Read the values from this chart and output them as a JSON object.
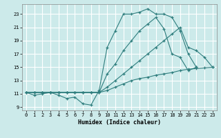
{
  "xlabel": "Humidex (Indice chaleur)",
  "xlim": [
    -0.5,
    23.5
  ],
  "ylim": [
    8.5,
    24.5
  ],
  "yticks": [
    9,
    11,
    13,
    15,
    17,
    19,
    21,
    23
  ],
  "xticks": [
    0,
    1,
    2,
    3,
    4,
    5,
    6,
    7,
    8,
    9,
    10,
    11,
    12,
    13,
    14,
    15,
    16,
    17,
    18,
    19,
    20,
    21,
    22,
    23
  ],
  "bg_color": "#cceaea",
  "line_color": "#2e7d7d",
  "grid_color": "#b0d8d8",
  "lines": [
    [
      11.2,
      10.8,
      11.0,
      11.2,
      10.8,
      10.3,
      10.5,
      9.5,
      9.3,
      11.5,
      18.0,
      20.5,
      23.0,
      23.0,
      23.3,
      23.8,
      23.0,
      23.0,
      22.5,
      20.5,
      17.0,
      15.0,
      null,
      null
    ],
    [
      11.2,
      11.2,
      11.2,
      11.2,
      11.2,
      11.2,
      11.2,
      11.2,
      11.2,
      11.2,
      14.0,
      15.5,
      17.5,
      19.0,
      20.5,
      21.5,
      22.5,
      20.8,
      17.0,
      16.5,
      14.5,
      15.0,
      null,
      null
    ],
    [
      11.2,
      11.2,
      11.2,
      11.2,
      11.2,
      11.2,
      11.2,
      11.2,
      11.2,
      11.2,
      12.0,
      13.0,
      14.0,
      15.0,
      16.0,
      17.0,
      18.0,
      19.0,
      20.0,
      21.0,
      18.0,
      17.5,
      16.5,
      15.0
    ],
    [
      11.2,
      11.2,
      11.2,
      11.2,
      11.2,
      11.2,
      11.2,
      11.2,
      11.2,
      11.2,
      11.5,
      12.0,
      12.5,
      13.0,
      13.3,
      13.5,
      13.8,
      14.0,
      14.2,
      14.5,
      14.7,
      14.8,
      14.9,
      15.0
    ]
  ]
}
